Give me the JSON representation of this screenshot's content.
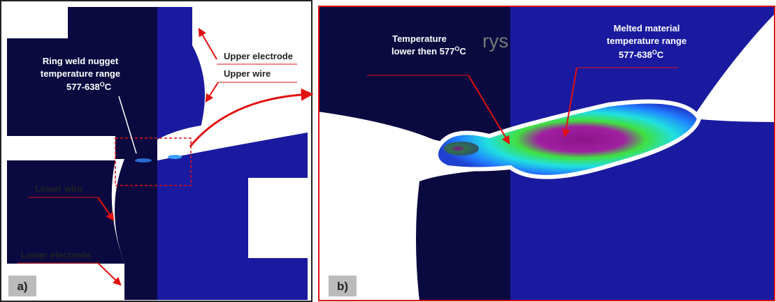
{
  "panel_a": {
    "label": "a)",
    "annotations": {
      "upper_electrode": "Upper electrode",
      "upper_wire": "Upper wire",
      "nugget_line1": "Ring weld nugget",
      "nugget_line2": "temperature range",
      "nugget_range": "577-638",
      "nugget_sup": "O",
      "nugget_unit": "C",
      "lower_wire": "Lower wire",
      "lower_electrode": "Lower electrode"
    }
  },
  "panel_b": {
    "label": "b)",
    "watermark": "rys",
    "annotations": {
      "low_line1": "Temperature",
      "low_line2": "lower then 577",
      "low_sup": "O",
      "low_unit": "C",
      "melt_line1": "Melted material",
      "melt_line2": "temperature range",
      "melt_range": "577-638",
      "melt_sup": "O",
      "melt_unit": "C"
    }
  }
}
